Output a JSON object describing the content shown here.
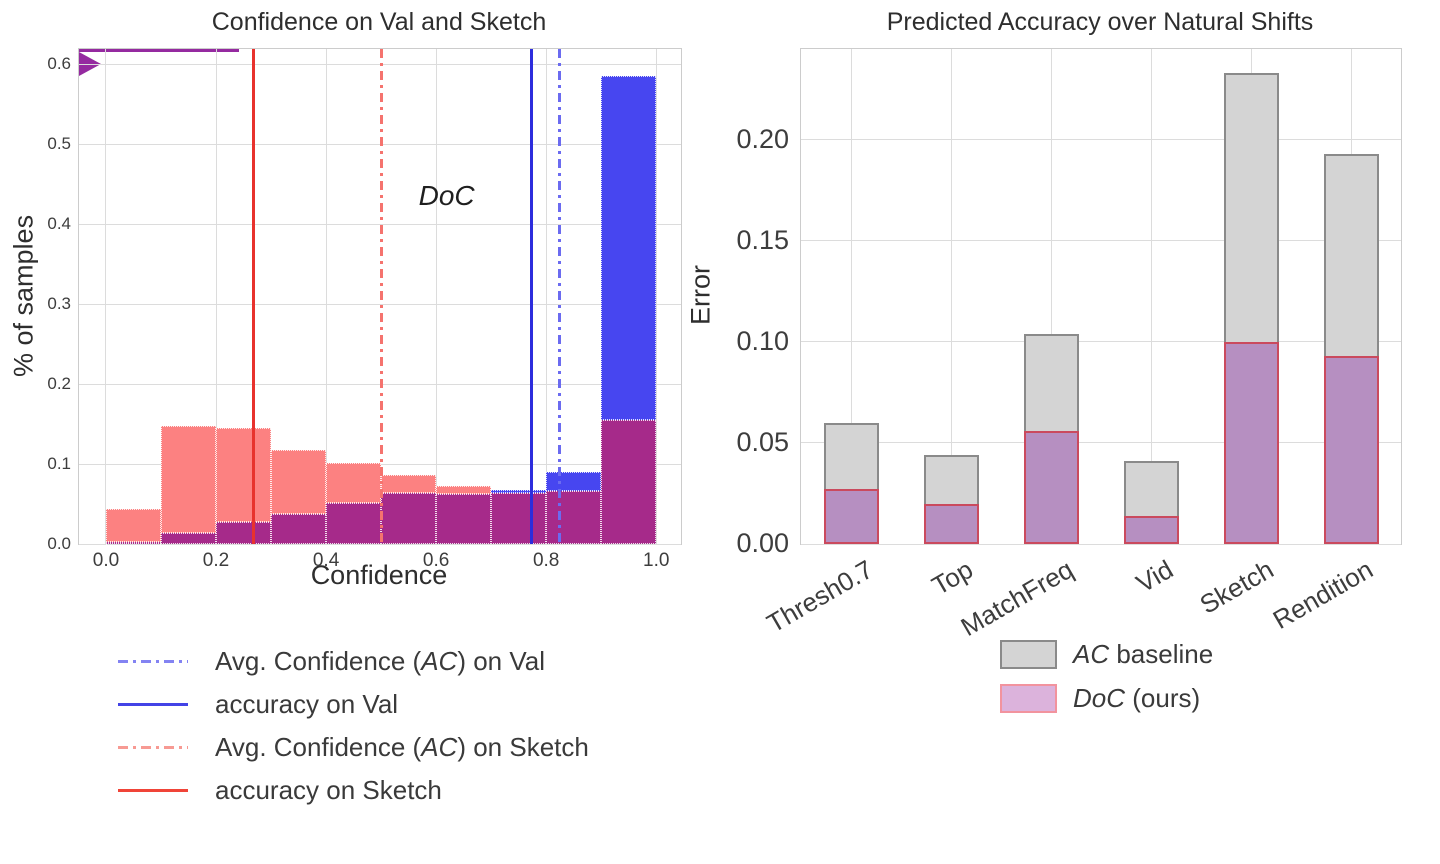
{
  "figure": {
    "background": "#ffffff",
    "grid_color": "#dcdcdc",
    "spine_color": "#cccccc"
  },
  "chart_data": [
    {
      "type": "histogram",
      "title": "Confidence on Val and Sketch",
      "xlabel": "Confidence",
      "ylabel": "% of samples",
      "xlim": [
        -0.049,
        1.045
      ],
      "ylim": [
        0,
        0.619
      ],
      "grid": true,
      "xticks": [
        "0.0",
        "0.2",
        "0.4",
        "0.6",
        "0.8",
        "1.0"
      ],
      "yticks": [
        "0.0",
        "0.1",
        "0.2",
        "0.3",
        "0.4",
        "0.5",
        "0.6"
      ],
      "bin_edges": [
        0.0,
        0.1,
        0.2,
        0.3,
        0.4,
        0.5,
        0.6,
        0.7,
        0.8,
        0.9,
        1.0
      ],
      "series": [
        {
          "name": "Val",
          "color": "#4746f0",
          "values": [
            0.003,
            0.014,
            0.028,
            0.037,
            0.051,
            0.064,
            0.063,
            0.067,
            0.09,
            0.585
          ]
        },
        {
          "name": "Sketch",
          "color": "#fc8181",
          "values": [
            0.044,
            0.147,
            0.145,
            0.117,
            0.101,
            0.086,
            0.073,
            0.064,
            0.066,
            0.155
          ]
        }
      ],
      "overlap_color": "#a62a8a",
      "vlines": [
        {
          "key": "avg-confidence-val",
          "x": 0.824,
          "style": "dashdot",
          "color": "#6b6bf0"
        },
        {
          "key": "accuracy-val",
          "x": 0.773,
          "style": "solid",
          "color": "#2d2ddd"
        },
        {
          "key": "avg-confidence-sketch",
          "x": 0.5,
          "style": "dashdot",
          "color": "#f5736e"
        },
        {
          "key": "accuracy-sketch",
          "x": 0.268,
          "style": "solid",
          "color": "#e8322d"
        }
      ],
      "annotation": {
        "parts": [
          {
            "t": "DoC",
            "i": 1
          }
        ],
        "arrow_from_x": 0.5,
        "arrow_to_x": 0.824,
        "arrow_y": 0.4,
        "label_x": 0.65,
        "color": "#952aa0"
      },
      "legend": [
        {
          "style": "dashdot",
          "color": "#8383f2",
          "parts": [
            {
              "t": "Avg. Confidence (",
              "i": 0
            },
            {
              "t": "AC",
              "i": 1
            },
            {
              "t": ") on Val",
              "i": 0
            }
          ]
        },
        {
          "style": "solid",
          "color": "#4343e6",
          "parts": [
            {
              "t": "accuracy on Val",
              "i": 0
            }
          ]
        },
        {
          "style": "dashdot",
          "color": "#f79a93",
          "parts": [
            {
              "t": "Avg. Confidence (",
              "i": 0
            },
            {
              "t": "AC",
              "i": 1
            },
            {
              "t": ")  on Sketch",
              "i": 0
            }
          ]
        },
        {
          "style": "solid",
          "color": "#f04438",
          "parts": [
            {
              "t": "accuracy on Sketch",
              "i": 0
            }
          ]
        }
      ]
    },
    {
      "type": "bar",
      "title": "Predicted Accuracy over Natural Shifts",
      "xlabel": "",
      "ylabel": "Error",
      "ylim": [
        0,
        0.245
      ],
      "grid": true,
      "yticks": [
        "0.00",
        "0.05",
        "0.10",
        "0.15",
        "0.20"
      ],
      "categories": [
        "Thresh0.7",
        "Top",
        "MatchFreq",
        "Vid",
        "Sketch",
        "Rendition"
      ],
      "series": [
        {
          "name": "AC baseline",
          "fill": "#d4d4d4",
          "edge": "#8a8a8a",
          "values": [
            0.06,
            0.044,
            0.104,
            0.041,
            0.233,
            0.193
          ]
        },
        {
          "name": "DoC (ours)",
          "fill": "#b68fc1",
          "edge": "#ca4a5e",
          "values": [
            0.027,
            0.02,
            0.056,
            0.014,
            0.1,
            0.093
          ]
        }
      ],
      "legend": [
        {
          "fill": "#d4d4d4",
          "edge": "#8a8a8a",
          "parts": [
            {
              "t": "AC",
              "i": 1
            },
            {
              "t": " baseline",
              "i": 0
            }
          ]
        },
        {
          "fill": "#dcb3dc",
          "edge": "#f2939e",
          "parts": [
            {
              "t": "DoC",
              "i": 1
            },
            {
              "t": " (ours)",
              "i": 0
            }
          ]
        }
      ]
    }
  ]
}
